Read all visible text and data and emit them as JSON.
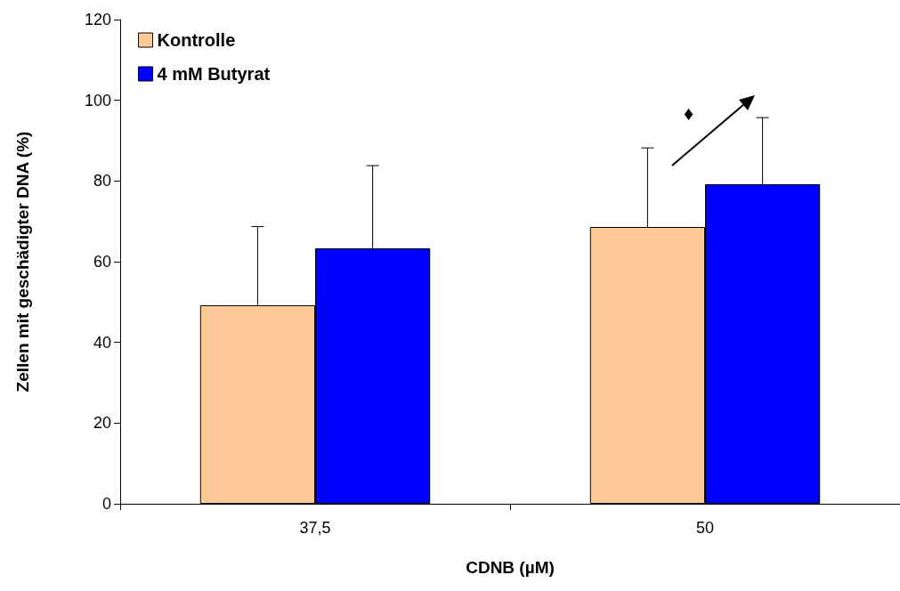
{
  "chart_data": {
    "type": "bar",
    "xlabel": "CDNB (µM)",
    "ylabel": "Zellen mit geschädigter DNA (%)",
    "categories": [
      "37,5",
      "50"
    ],
    "series": [
      {
        "name": "Kontrolle",
        "color": "#fdca97",
        "values": [
          49.2,
          68.6
        ],
        "errors": [
          [
            49.2,
            68.7
          ],
          [
            68.6,
            88.2
          ]
        ]
      },
      {
        "name": "4 mM Butyrat",
        "color": "#0000ff",
        "values": [
          63.3,
          79.2
        ],
        "errors": [
          [
            63.3,
            83.8
          ],
          [
            79.2,
            95.7
          ]
        ]
      }
    ],
    "ylim": [
      0,
      120
    ],
    "yticks": [
      0,
      20,
      40,
      60,
      80,
      100,
      120
    ],
    "grid": false,
    "legend": "top left",
    "annotations": [
      "♦"
    ]
  }
}
